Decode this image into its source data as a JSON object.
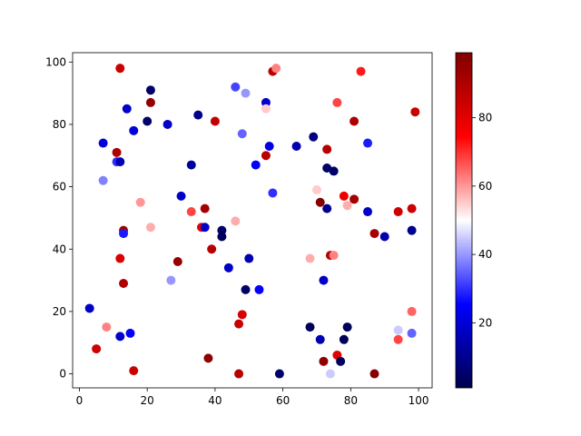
{
  "chart_data": {
    "type": "scatter",
    "title": "",
    "xlabel": "",
    "ylabel": "",
    "xlim": [
      -2,
      104
    ],
    "ylim": [
      -4.5,
      103
    ],
    "x_ticks": [
      0,
      20,
      40,
      60,
      80,
      100
    ],
    "y_ticks": [
      0,
      20,
      40,
      60,
      80,
      100
    ],
    "grid": false,
    "colormap": "seismic",
    "colorbar": {
      "range": [
        1,
        99
      ],
      "ticks": [
        20,
        40,
        60,
        80
      ]
    },
    "points": [
      {
        "x": 12,
        "y": 98,
        "c": 85
      },
      {
        "x": 21,
        "y": 91,
        "c": 5
      },
      {
        "x": 21,
        "y": 87,
        "c": 95
      },
      {
        "x": 14,
        "y": 85,
        "c": 18
      },
      {
        "x": 20,
        "y": 81,
        "c": 5
      },
      {
        "x": 26,
        "y": 80,
        "c": 18
      },
      {
        "x": 16,
        "y": 78,
        "c": 20
      },
      {
        "x": 7,
        "y": 74,
        "c": 20
      },
      {
        "x": 11,
        "y": 71,
        "c": 90
      },
      {
        "x": 11,
        "y": 68,
        "c": 30
      },
      {
        "x": 12,
        "y": 68,
        "c": 15
      },
      {
        "x": 7,
        "y": 62,
        "c": 38
      },
      {
        "x": 18,
        "y": 55,
        "c": 60
      },
      {
        "x": 21,
        "y": 47,
        "c": 58
      },
      {
        "x": 13,
        "y": 46,
        "c": 92
      },
      {
        "x": 13,
        "y": 45,
        "c": 28
      },
      {
        "x": 12,
        "y": 37,
        "c": 82
      },
      {
        "x": 13,
        "y": 29,
        "c": 90
      },
      {
        "x": 3,
        "y": 21,
        "c": 18
      },
      {
        "x": 8,
        "y": 15,
        "c": 62
      },
      {
        "x": 12,
        "y": 12,
        "c": 18
      },
      {
        "x": 15,
        "y": 13,
        "c": 25
      },
      {
        "x": 5,
        "y": 8,
        "c": 84
      },
      {
        "x": 16,
        "y": 1,
        "c": 85
      },
      {
        "x": 35,
        "y": 83,
        "c": 10
      },
      {
        "x": 40,
        "y": 81,
        "c": 86
      },
      {
        "x": 33,
        "y": 67,
        "c": 12
      },
      {
        "x": 30,
        "y": 57,
        "c": 18
      },
      {
        "x": 33,
        "y": 52,
        "c": 68
      },
      {
        "x": 37,
        "y": 53,
        "c": 92
      },
      {
        "x": 36,
        "y": 47,
        "c": 78
      },
      {
        "x": 37,
        "y": 47,
        "c": 18
      },
      {
        "x": 42,
        "y": 46,
        "c": 5
      },
      {
        "x": 42,
        "y": 44,
        "c": 3
      },
      {
        "x": 39,
        "y": 40,
        "c": 88
      },
      {
        "x": 29,
        "y": 36,
        "c": 95
      },
      {
        "x": 44,
        "y": 34,
        "c": 18
      },
      {
        "x": 27,
        "y": 30,
        "c": 40
      },
      {
        "x": 38,
        "y": 5,
        "c": 96
      },
      {
        "x": 46,
        "y": 92,
        "c": 32
      },
      {
        "x": 49,
        "y": 90,
        "c": 40
      },
      {
        "x": 57,
        "y": 97,
        "c": 88
      },
      {
        "x": 58,
        "y": 98,
        "c": 62
      },
      {
        "x": 62,
        "y": 93,
        "c": 50
      },
      {
        "x": 55,
        "y": 87,
        "c": 18
      },
      {
        "x": 55,
        "y": 85,
        "c": 55
      },
      {
        "x": 48,
        "y": 77,
        "c": 35
      },
      {
        "x": 56,
        "y": 73,
        "c": 22
      },
      {
        "x": 55,
        "y": 70,
        "c": 88
      },
      {
        "x": 52,
        "y": 67,
        "c": 25
      },
      {
        "x": 57,
        "y": 58,
        "c": 30
      },
      {
        "x": 46,
        "y": 49,
        "c": 58
      },
      {
        "x": 50,
        "y": 37,
        "c": 15
      },
      {
        "x": 49,
        "y": 27,
        "c": 5
      },
      {
        "x": 53,
        "y": 27,
        "c": 25
      },
      {
        "x": 48,
        "y": 19,
        "c": 82
      },
      {
        "x": 47,
        "y": 16,
        "c": 85
      },
      {
        "x": 47,
        "y": 0,
        "c": 88
      },
      {
        "x": 59,
        "y": 0,
        "c": 5
      },
      {
        "x": 69,
        "y": 76,
        "c": 8
      },
      {
        "x": 64,
        "y": 73,
        "c": 15
      },
      {
        "x": 73,
        "y": 72,
        "c": 88
      },
      {
        "x": 73,
        "y": 66,
        "c": 5
      },
      {
        "x": 75,
        "y": 65,
        "c": 5
      },
      {
        "x": 70,
        "y": 59,
        "c": 55
      },
      {
        "x": 71,
        "y": 55,
        "c": 98
      },
      {
        "x": 73,
        "y": 53,
        "c": 10
      },
      {
        "x": 68,
        "y": 37,
        "c": 58
      },
      {
        "x": 74,
        "y": 38,
        "c": 88
      },
      {
        "x": 75,
        "y": 38,
        "c": 62
      },
      {
        "x": 72,
        "y": 30,
        "c": 18
      },
      {
        "x": 68,
        "y": 15,
        "c": 3
      },
      {
        "x": 71,
        "y": 11,
        "c": 15
      },
      {
        "x": 72,
        "y": 4,
        "c": 96
      },
      {
        "x": 74,
        "y": 0,
        "c": 45
      },
      {
        "x": 76,
        "y": 6,
        "c": 80
      },
      {
        "x": 77,
        "y": 4,
        "c": 3
      },
      {
        "x": 78,
        "y": 11,
        "c": 3
      },
      {
        "x": 79,
        "y": 15,
        "c": 3
      },
      {
        "x": 76,
        "y": 87,
        "c": 68
      },
      {
        "x": 83,
        "y": 97,
        "c": 72
      },
      {
        "x": 81,
        "y": 81,
        "c": 90
      },
      {
        "x": 85,
        "y": 74,
        "c": 28
      },
      {
        "x": 78,
        "y": 57,
        "c": 78
      },
      {
        "x": 79,
        "y": 54,
        "c": 58
      },
      {
        "x": 81,
        "y": 56,
        "c": 92
      },
      {
        "x": 85,
        "y": 52,
        "c": 18
      },
      {
        "x": 87,
        "y": 45,
        "c": 92
      },
      {
        "x": 90,
        "y": 44,
        "c": 15
      },
      {
        "x": 87,
        "y": 0,
        "c": 98
      },
      {
        "x": 99,
        "y": 84,
        "c": 85
      },
      {
        "x": 94,
        "y": 52,
        "c": 84
      },
      {
        "x": 98,
        "y": 53,
        "c": 84
      },
      {
        "x": 98,
        "y": 46,
        "c": 10
      },
      {
        "x": 98,
        "y": 20,
        "c": 65
      },
      {
        "x": 94,
        "y": 14,
        "c": 45
      },
      {
        "x": 98,
        "y": 13,
        "c": 35
      },
      {
        "x": 94,
        "y": 11,
        "c": 68
      }
    ]
  }
}
